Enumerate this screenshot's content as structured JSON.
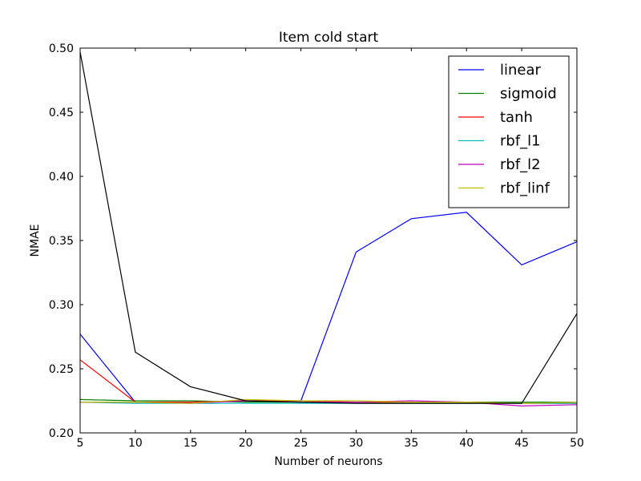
{
  "chart_data": {
    "type": "line",
    "title": "Item cold start",
    "xlabel": "Number of neurons",
    "ylabel": "NMAE",
    "xlim": [
      5,
      50
    ],
    "ylim": [
      0.2,
      0.5
    ],
    "xticks": [
      "5",
      "10",
      "15",
      "20",
      "25",
      "30",
      "35",
      "40",
      "45",
      "50"
    ],
    "yticks": [
      "0.20",
      "0.25",
      "0.30",
      "0.35",
      "0.40",
      "0.45",
      "0.50"
    ],
    "x": [
      5,
      10,
      15,
      20,
      25,
      30,
      35,
      40,
      45,
      50
    ],
    "grid": false,
    "legend_position": "top-right",
    "series": [
      {
        "name": "linear",
        "color": "#0000ff",
        "values": [
          0.277,
          0.224,
          0.224,
          0.225,
          0.225,
          0.341,
          0.367,
          0.372,
          0.331,
          0.349
        ]
      },
      {
        "name": "sigmoid",
        "color": "#008000",
        "values": [
          0.226,
          0.225,
          0.225,
          0.224,
          0.224,
          0.224,
          0.224,
          0.224,
          0.224,
          0.224
        ]
      },
      {
        "name": "tanh",
        "color": "#ff0000",
        "values": [
          0.257,
          0.224,
          0.224,
          0.225,
          0.225,
          0.224,
          0.224,
          0.224,
          0.223,
          0.223
        ]
      },
      {
        "name": "rbf_l1",
        "color": "#00bfbf",
        "values": [
          0.224,
          0.223,
          0.223,
          0.223,
          0.223,
          0.223,
          0.223,
          0.223,
          0.223,
          0.223
        ]
      },
      {
        "name": "rbf_l2",
        "color": "#bf00bf",
        "values": [
          0.224,
          0.224,
          0.223,
          0.225,
          0.224,
          0.224,
          0.225,
          0.224,
          0.221,
          0.222
        ]
      },
      {
        "name": "rbf_linf",
        "color": "#bfbf00",
        "values": [
          0.224,
          0.224,
          0.223,
          0.226,
          0.225,
          0.225,
          0.224,
          0.224,
          0.223,
          0.224
        ]
      },
      {
        "name": "",
        "color": "#000000",
        "values": [
          0.497,
          0.263,
          0.236,
          0.225,
          0.224,
          0.223,
          0.223,
          0.223,
          0.223,
          0.293
        ]
      }
    ]
  }
}
